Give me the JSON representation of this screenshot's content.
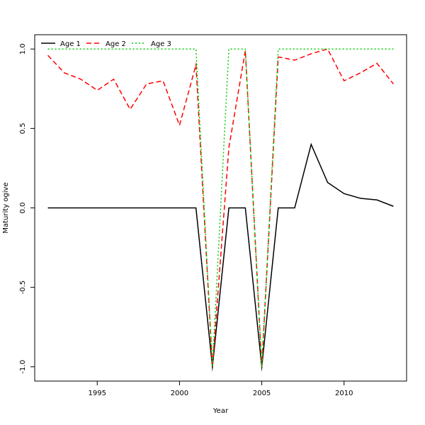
{
  "chart_data": {
    "type": "line",
    "title": "",
    "xlabel": "Year",
    "ylabel": "Maturity ogive",
    "xlim": [
      1991.2,
      2013.8
    ],
    "ylim": [
      -1.09,
      1.09
    ],
    "xticks": [
      1995,
      2000,
      2005,
      2010
    ],
    "yticks": [
      -1.0,
      -0.5,
      0.0,
      0.5,
      1.0
    ],
    "ytick_labels": [
      "-1.0",
      "-0.5",
      "0.0",
      "0.5",
      "1.0"
    ],
    "grid": false,
    "legend_position": "top-left",
    "x": [
      1992,
      1993,
      1994,
      1995,
      1996,
      1997,
      1998,
      1999,
      2000,
      2001,
      2002,
      2003,
      2004,
      2005,
      2006,
      2007,
      2008,
      2009,
      2010,
      2011,
      2012,
      2013
    ],
    "series": [
      {
        "name": "Age 1",
        "color": "#000000",
        "dash": "solid",
        "values": [
          0,
          0,
          0,
          0,
          0,
          0,
          0,
          0,
          0,
          0,
          -1,
          0,
          0,
          -1,
          0,
          0,
          0.4,
          0.16,
          0.09,
          0.06,
          0.05,
          0.01
        ]
      },
      {
        "name": "Age 2",
        "color": "#ff0000",
        "dash": "dashed",
        "values": [
          0.96,
          0.85,
          0.81,
          0.74,
          0.81,
          0.62,
          0.78,
          0.8,
          0.52,
          0.9,
          -1,
          0.38,
          0.99,
          -1,
          0.95,
          0.93,
          0.97,
          1.0,
          0.8,
          0.85,
          0.91,
          0.78
        ]
      },
      {
        "name": "Age 3",
        "color": "#00cd00",
        "dash": "dotted",
        "values": [
          1,
          1,
          1,
          1,
          1,
          1,
          1,
          1,
          1,
          1,
          -1,
          1,
          1,
          -1,
          1,
          1,
          1,
          1,
          1,
          1,
          1,
          1
        ]
      }
    ]
  }
}
